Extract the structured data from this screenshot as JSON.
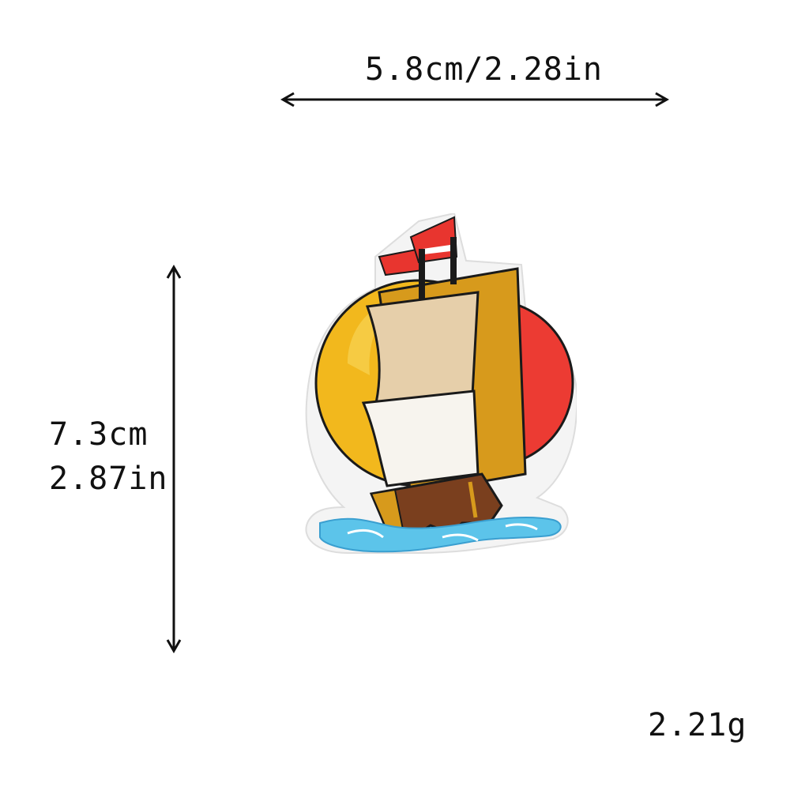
{
  "dimensions": {
    "width_label": "5.8cm/2.28in",
    "height_label_cm": "7.3cm",
    "height_label_in": "2.87in",
    "weight_label": "2.21g"
  },
  "patch": {
    "subject": "sailing ship embroidered patch",
    "colors": {
      "sun_yellow": "#f2b81d",
      "sun_red": "#ec3b33",
      "sail_tan": "#e6cfaa",
      "sail_white": "#f7f4ee",
      "hull_brown": "#7a3f1e",
      "flag_red": "#e8352f",
      "water_blue": "#5cc4ea",
      "border_white": "#f3f3f3",
      "outline": "#1a1a1a"
    }
  }
}
